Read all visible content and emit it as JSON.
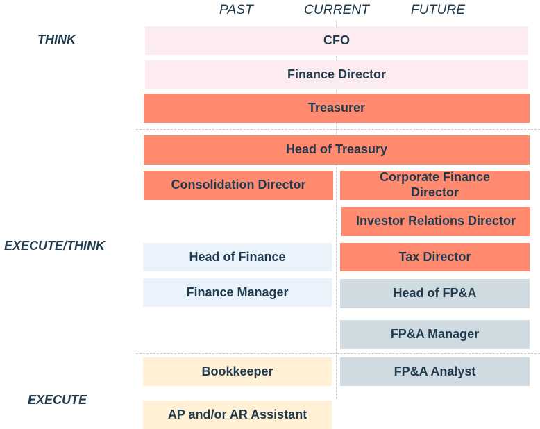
{
  "columns": {
    "past": "PAST",
    "current": "CURRENT",
    "future": "FUTURE"
  },
  "rows": {
    "think": "THINK",
    "execute_think": "EXECUTE/THINK",
    "execute": "EXECUTE"
  },
  "roles": {
    "cfo": "CFO",
    "finance_director": "Finance Director",
    "treasurer": "Treasurer",
    "head_of_treasury": "Head of Treasury",
    "consolidation_director": "Consolidation Director",
    "corporate_finance_director": "Corporate Finance Director",
    "investor_relations_director": "Investor Relations Director",
    "head_of_finance": "Head of Finance",
    "tax_director": "Tax Director",
    "finance_manager": "Finance Manager",
    "head_of_fpa": "Head of FP&A",
    "fpa_manager": "FP&A Manager",
    "bookkeeper": "Bookkeeper",
    "fpa_analyst": "FP&A Analyst",
    "ap_ar_assistant": "AP and/or AR Assistant"
  },
  "colors": {
    "pink": "#fdecef",
    "coral": "#ff8a70",
    "blue": "#eaf3fc",
    "grey": "#cfdbe0",
    "cream": "#fff0d6",
    "text": "#1f3b4d"
  }
}
